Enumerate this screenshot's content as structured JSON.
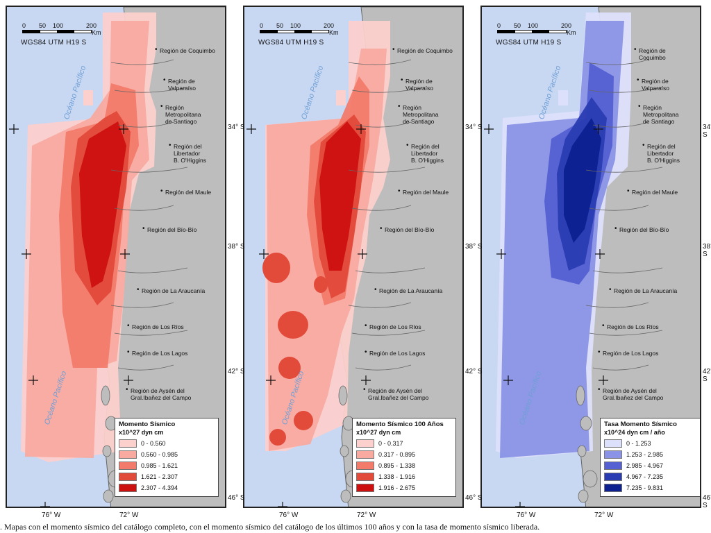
{
  "panels": [
    {
      "id": "full",
      "legend": {
        "title": "Momento Sísmico",
        "unit": "x10^27 dyn cm",
        "classes": [
          {
            "label": "0 - 0.560",
            "color": "#fcd0cc"
          },
          {
            "label": "0.560 - 0.985",
            "color": "#f8aaa0"
          },
          {
            "label": "0.985 - 1.621",
            "color": "#f27b6c"
          },
          {
            "label": "1.621 - 2.307",
            "color": "#e24a3a"
          },
          {
            "label": "2.307 - 4.394",
            "color": "#cc1010"
          }
        ]
      }
    },
    {
      "id": "last100",
      "legend": {
        "title": "Momento Sísmico 100 Años",
        "unit": "x10^27 dyn cm",
        "classes": [
          {
            "label": "0 - 0.317",
            "color": "#fcd0cc"
          },
          {
            "label": "0.317 - 0.895",
            "color": "#f8aaa0"
          },
          {
            "label": "0.895 - 1.338",
            "color": "#f27b6c"
          },
          {
            "label": "1.338 - 1.916",
            "color": "#e24a3a"
          },
          {
            "label": "1.916 - 2.675",
            "color": "#cc1010"
          }
        ]
      }
    },
    {
      "id": "rate",
      "legend": {
        "title": "Tasa Momento Sísmico",
        "unit": "x10^24 dyn cm / año",
        "classes": [
          {
            "label": "0 - 1.253",
            "color": "#dde0fa"
          },
          {
            "label": "1.253 - 2.985",
            "color": "#8a93e6"
          },
          {
            "label": "2.985 - 4.967",
            "color": "#5560d2"
          },
          {
            "label": "4.967 - 7.235",
            "color": "#2a3cb2"
          },
          {
            "label": "7.235 - 9.831",
            "color": "#0c2090"
          }
        ]
      }
    }
  ],
  "scale_bar": {
    "ticks": [
      "0",
      "50",
      "100",
      "200"
    ],
    "unit": "Km"
  },
  "crs": "WGS84 UTM H19 S",
  "ocean_label": "Océano Pacífico",
  "regions": [
    "Región de Coquimbo",
    "Región de Valparaíso",
    "Región Metropolitana de Santiago",
    "Región del Libertador B. O'Higgins",
    "Región del Maule",
    "Región del Bío-Bío",
    "Región de La Araucanía",
    "Región de Los Ríos",
    "Región de Los Lagos",
    "Región de Aysén del Gral.Ibañez del Campo"
  ],
  "region_lines_per_panel": [
    [
      [
        "Región de Coquimbo"
      ],
      [
        "Región de",
        "Valparaíso"
      ],
      [
        "Región",
        "Metropolitana",
        "de Santiago"
      ],
      [
        "Región del",
        "Libertador",
        "B. O'Higgins"
      ],
      [
        "Región del Maule"
      ],
      [
        "Región del Bío-Bío"
      ],
      [
        "Región de La Araucanía"
      ],
      [
        "Región de Los Ríos"
      ],
      [
        "Región de Los Lagos"
      ],
      [
        "Región de Aysén del",
        "Gral.Ibañez del Campo"
      ]
    ],
    [
      [
        "Región de Coquimbo"
      ],
      [
        "Región de",
        "Valparaíso"
      ],
      [
        "Región",
        "Metropolitana",
        "de Santiago"
      ],
      [
        "Región del",
        "Libertador",
        "B. O'Higgins"
      ],
      [
        "Región del Maule"
      ],
      [
        "Región del Bío-Bío"
      ],
      [
        "Región de La Araucanía"
      ],
      [
        "Región de Los Ríos"
      ],
      [
        "Región de Los Lagos"
      ],
      [
        "Región de Aysén del",
        "Gral.Ibañez del Campo"
      ]
    ],
    [
      [
        "Región de",
        "Coquimbo"
      ],
      [
        "Región de",
        "Valparaíso"
      ],
      [
        "Región",
        "Metropolitana",
        "de Santiago"
      ],
      [
        "Región del",
        "Libertador",
        "B. O'Higgins"
      ],
      [
        "Región del Maule"
      ],
      [
        "Región del Bío-Bío"
      ],
      [
        "Región de La Araucanía"
      ],
      [
        "Región de Los Ríos"
      ],
      [
        "Región de Los Lagos"
      ],
      [
        "Región de Aysén del",
        "Gral.Ibañez del Campo"
      ]
    ]
  ],
  "latitude_labels": [
    "34° S",
    "38° S",
    "42° S",
    "46° S"
  ],
  "longitude_labels": [
    "76° W",
    "72° W"
  ],
  "colors": {
    "ocean": "#c9d8f2",
    "land": "#bdbdbd",
    "border": "#666666"
  },
  "caption": ". Mapas con el momento sísmico del catálogo completo, con el momento sísmico del catálogo de los últimos 100 años y con la tasa de momento sísmico liberada."
}
